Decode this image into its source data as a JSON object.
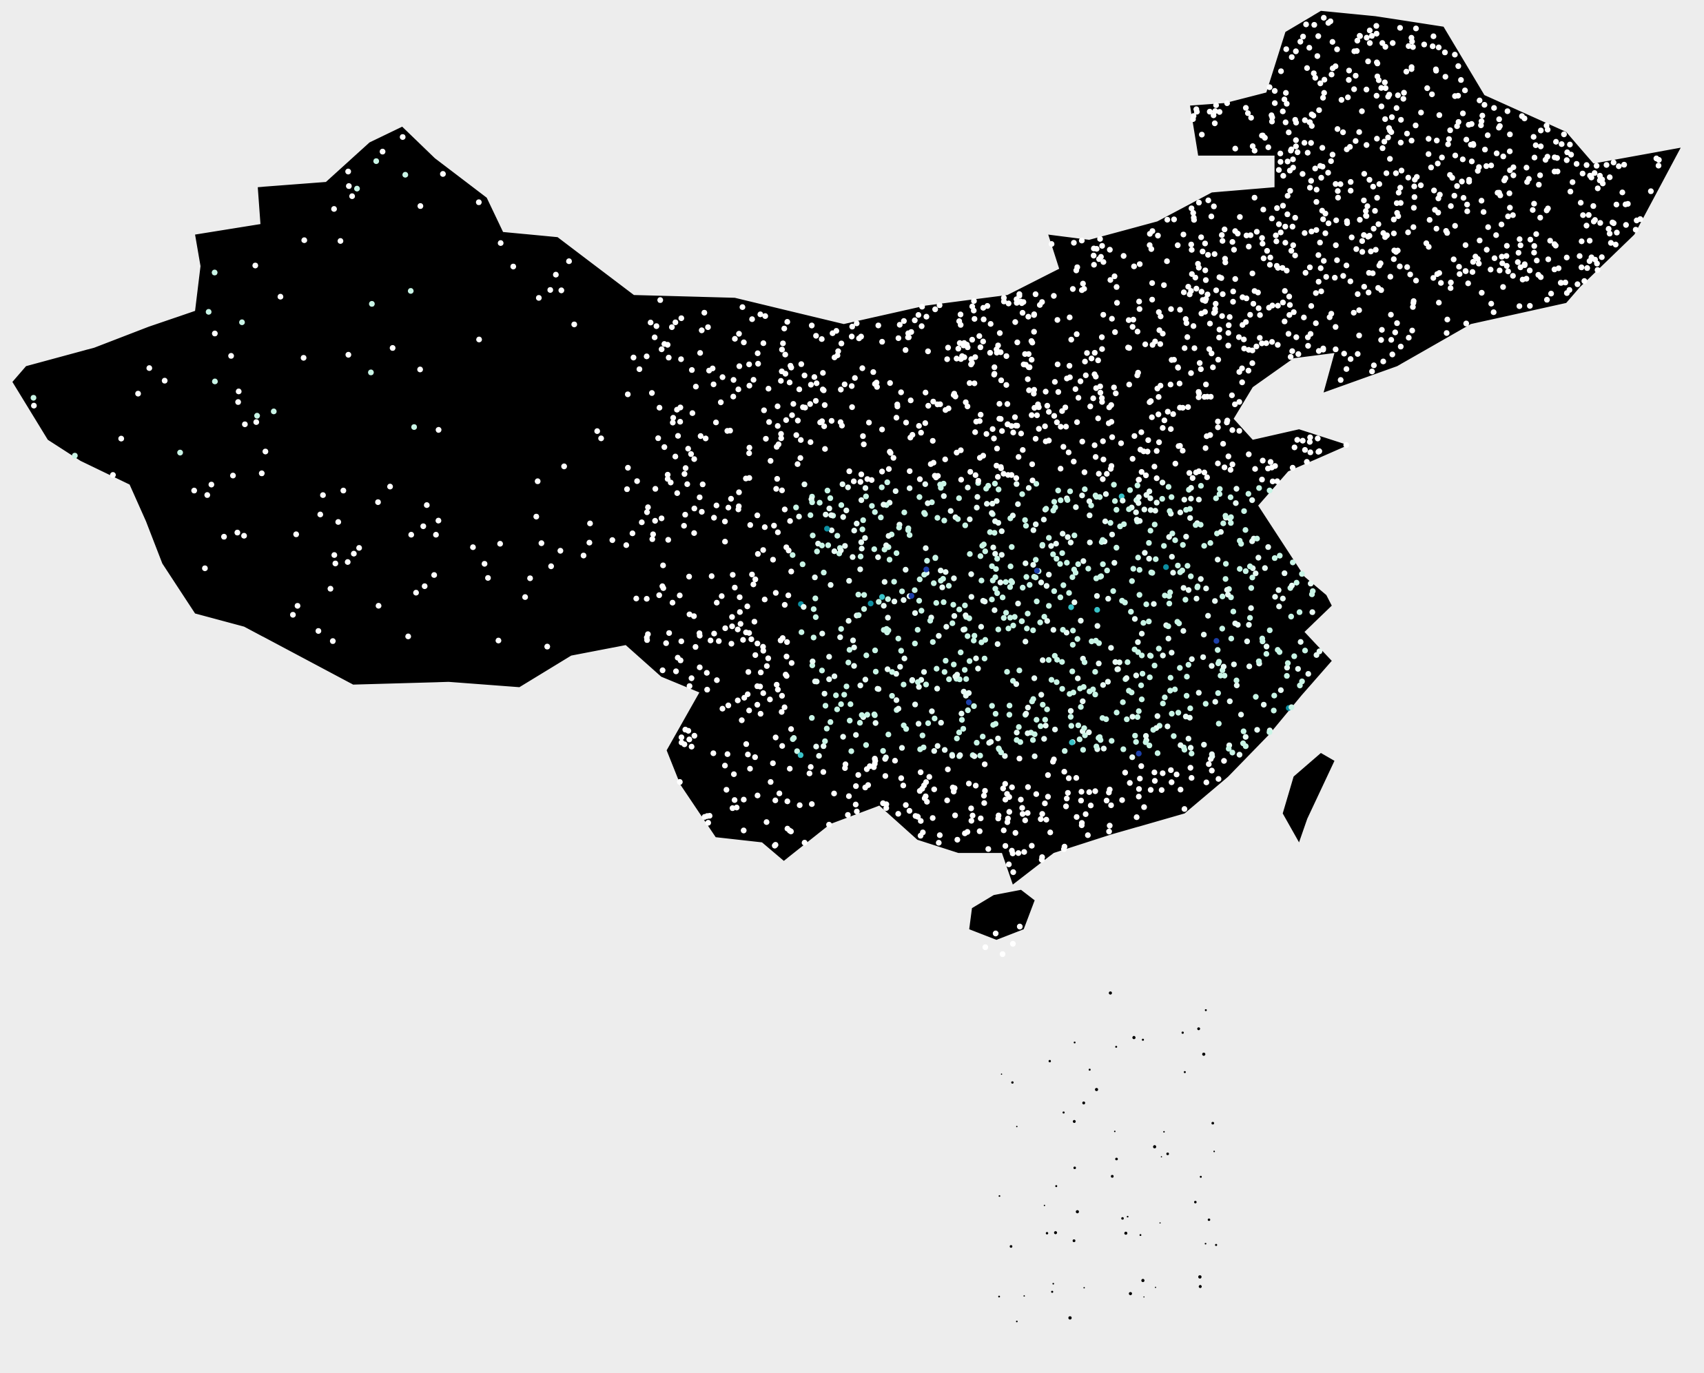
{
  "colors": {
    "background": "#ededed",
    "land": "#000000",
    "dot_palette": [
      "#ffffff",
      "#e8fbf4",
      "#c9f5e6",
      "#9ee8dd",
      "#39c3c8",
      "#0d8ea0",
      "#1c3fa8"
    ]
  },
  "map": {
    "projection": "lon-lat",
    "lon_range": [
      73.5,
      135.1
    ],
    "lat_range": [
      17.0,
      53.6
    ],
    "dot_data_source": "none",
    "mainland": [
      [
        121.5,
        53.5
      ],
      [
        123.5,
        53.3
      ],
      [
        126.0,
        52.9
      ],
      [
        127.5,
        50.3
      ],
      [
        130.5,
        48.9
      ],
      [
        131.5,
        47.7
      ],
      [
        134.7,
        48.3
      ],
      [
        133.0,
        45.0
      ],
      [
        131.0,
        43.0
      ],
      [
        130.5,
        42.4
      ],
      [
        127.0,
        41.6
      ],
      [
        124.3,
        40.0
      ],
      [
        121.6,
        39.0
      ],
      [
        122.0,
        40.5
      ],
      [
        120.5,
        40.3
      ],
      [
        119.0,
        39.2
      ],
      [
        118.3,
        38.0
      ],
      [
        119.0,
        37.2
      ],
      [
        120.7,
        37.6
      ],
      [
        122.5,
        37.0
      ],
      [
        120.3,
        36.0
      ],
      [
        119.2,
        34.7
      ],
      [
        120.9,
        32.0
      ],
      [
        121.7,
        31.3
      ],
      [
        121.9,
        30.9
      ],
      [
        120.9,
        29.9
      ],
      [
        121.9,
        28.8
      ],
      [
        120.8,
        27.5
      ],
      [
        119.6,
        26.0
      ],
      [
        118.1,
        24.4
      ],
      [
        116.5,
        23.0
      ],
      [
        113.8,
        22.2
      ],
      [
        111.7,
        21.5
      ],
      [
        110.2,
        20.3
      ],
      [
        109.8,
        21.5
      ],
      [
        108.2,
        21.5
      ],
      [
        106.7,
        22.0
      ],
      [
        105.3,
        23.3
      ],
      [
        103.5,
        22.6
      ],
      [
        101.8,
        21.2
      ],
      [
        101.0,
        21.9
      ],
      [
        99.3,
        22.1
      ],
      [
        98.0,
        24.1
      ],
      [
        97.5,
        25.4
      ],
      [
        98.7,
        27.6
      ],
      [
        97.3,
        28.2
      ],
      [
        96.0,
        29.4
      ],
      [
        94.0,
        29.0
      ],
      [
        92.1,
        27.8
      ],
      [
        89.5,
        28.0
      ],
      [
        86.0,
        27.9
      ],
      [
        82.0,
        30.1
      ],
      [
        80.2,
        30.6
      ],
      [
        79.0,
        32.5
      ],
      [
        78.4,
        34.1
      ],
      [
        77.8,
        35.5
      ],
      [
        76.0,
        36.4
      ],
      [
        74.8,
        37.2
      ],
      [
        73.5,
        39.4
      ],
      [
        74.0,
        40.0
      ],
      [
        76.5,
        40.7
      ],
      [
        78.5,
        41.5
      ],
      [
        80.2,
        42.1
      ],
      [
        80.4,
        43.8
      ],
      [
        80.2,
        45.0
      ],
      [
        82.6,
        45.4
      ],
      [
        82.5,
        46.8
      ],
      [
        85.0,
        47.0
      ],
      [
        86.6,
        48.5
      ],
      [
        87.8,
        49.1
      ],
      [
        89.0,
        47.9
      ],
      [
        90.9,
        46.4
      ],
      [
        91.5,
        45.1
      ],
      [
        93.5,
        44.9
      ],
      [
        96.3,
        42.7
      ],
      [
        100.0,
        42.6
      ],
      [
        104.0,
        41.6
      ],
      [
        107.0,
        42.3
      ],
      [
        110.0,
        42.7
      ],
      [
        111.9,
        43.7
      ],
      [
        111.5,
        45.0
      ],
      [
        113.0,
        44.8
      ],
      [
        115.5,
        45.5
      ],
      [
        117.5,
        46.6
      ],
      [
        119.8,
        46.8
      ],
      [
        119.8,
        48.0
      ],
      [
        117.0,
        48.0
      ],
      [
        116.7,
        49.9
      ],
      [
        118.0,
        50.0
      ],
      [
        119.5,
        50.4
      ],
      [
        120.2,
        52.7
      ]
    ],
    "islands": [
      [
        [
          110.5,
          20.1
        ],
        [
          111.0,
          19.7
        ],
        [
          110.6,
          18.6
        ],
        [
          109.6,
          18.2
        ],
        [
          108.6,
          18.6
        ],
        [
          108.7,
          19.4
        ],
        [
          109.5,
          19.9
        ]
      ],
      [
        [
          121.5,
          25.3
        ],
        [
          122.0,
          25.0
        ],
        [
          121.0,
          22.8
        ],
        [
          120.7,
          21.9
        ],
        [
          120.1,
          23.0
        ],
        [
          120.5,
          24.4
        ]
      ]
    ]
  }
}
